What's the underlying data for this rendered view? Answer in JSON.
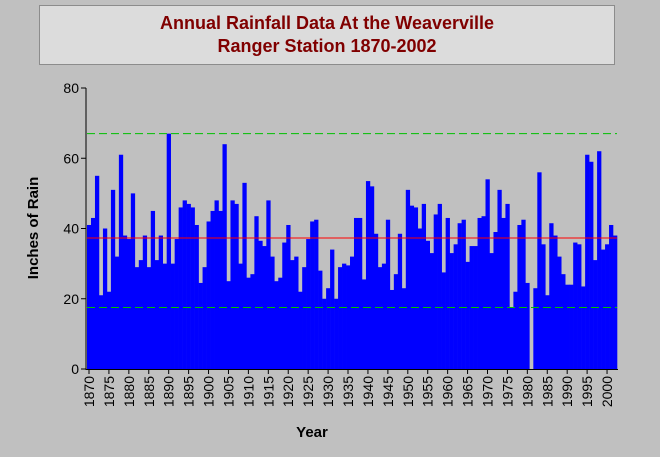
{
  "chart_data": {
    "type": "bar",
    "title": "Annual Rainfall Data At the Weaverville Ranger Station 1870-2002",
    "xlabel": "Year",
    "ylabel": "Inches of Rain",
    "xlim": [
      1870,
      2002
    ],
    "ylim": [
      0,
      80
    ],
    "yticks": [
      0,
      20,
      40,
      60,
      80
    ],
    "xticks": [
      "1870",
      "1875",
      "1880",
      "1885",
      "1890",
      "1895",
      "1900",
      "1905",
      "1910",
      "1915",
      "1920",
      "1925",
      "1930",
      "1935",
      "1940",
      "1945",
      "1950",
      "1955",
      "1960",
      "1965",
      "1970",
      "1975",
      "1980",
      "1985",
      "1990",
      "1995",
      "2000"
    ],
    "reference_lines": [
      {
        "style": "dashed",
        "color": "#00c000",
        "value": 67
      },
      {
        "style": "solid",
        "color": "#ff0000",
        "value": 37.3
      },
      {
        "style": "dashed",
        "color": "#00c000",
        "value": 17.5
      }
    ],
    "colors": {
      "bar": "#0000ff",
      "background": "#c0c0c0",
      "title": "#800000"
    },
    "grid": false,
    "x": [
      1870,
      1871,
      1872,
      1873,
      1874,
      1875,
      1876,
      1877,
      1878,
      1879,
      1880,
      1881,
      1882,
      1883,
      1884,
      1885,
      1886,
      1887,
      1888,
      1889,
      1890,
      1891,
      1892,
      1893,
      1894,
      1895,
      1896,
      1897,
      1898,
      1899,
      1900,
      1901,
      1902,
      1903,
      1904,
      1905,
      1906,
      1907,
      1908,
      1909,
      1910,
      1911,
      1912,
      1913,
      1914,
      1915,
      1916,
      1917,
      1918,
      1919,
      1920,
      1921,
      1922,
      1923,
      1924,
      1925,
      1926,
      1927,
      1928,
      1929,
      1930,
      1931,
      1932,
      1933,
      1934,
      1935,
      1936,
      1937,
      1938,
      1939,
      1940,
      1941,
      1942,
      1943,
      1944,
      1945,
      1946,
      1947,
      1948,
      1949,
      1950,
      1951,
      1952,
      1953,
      1954,
      1955,
      1956,
      1957,
      1958,
      1959,
      1960,
      1961,
      1962,
      1963,
      1964,
      1965,
      1966,
      1967,
      1968,
      1969,
      1970,
      1971,
      1972,
      1973,
      1974,
      1975,
      1976,
      1977,
      1978,
      1979,
      1980,
      1981,
      1982,
      1983,
      1984,
      1985,
      1986,
      1987,
      1988,
      1989,
      1990,
      1991,
      1992,
      1993,
      1994,
      1995,
      1996,
      1997,
      1998,
      1999,
      2000,
      2001,
      2002
    ],
    "values": [
      41,
      43,
      55,
      21,
      40,
      22,
      51,
      32,
      61,
      38,
      37,
      50,
      29,
      31,
      38,
      29,
      45,
      31,
      38,
      30,
      67,
      30,
      37,
      46,
      48,
      47,
      46,
      41,
      24.5,
      29,
      42,
      45,
      48,
      45,
      64,
      25,
      48,
      47,
      30,
      53,
      26,
      27,
      43.5,
      36.5,
      35,
      48,
      32,
      25,
      26,
      36,
      41,
      31,
      32,
      22,
      29,
      37,
      42,
      42.5,
      28,
      20,
      23,
      34,
      20,
      29,
      30,
      29.5,
      32,
      43,
      43,
      25.5,
      53.5,
      52,
      38.5,
      29,
      30,
      42.5,
      22.5,
      27,
      38.5,
      23,
      51,
      46.5,
      46,
      40,
      47,
      36.5,
      33,
      44,
      47,
      27.5,
      43,
      33,
      35.5,
      41.5,
      42.5,
      30.5,
      35,
      35,
      43,
      43.5,
      54,
      33,
      39,
      51,
      43,
      47,
      17.5,
      22,
      41,
      42.5,
      24.5,
      0,
      23,
      56,
      35.5,
      21,
      41.5,
      38,
      32,
      27,
      24,
      24,
      36,
      35.5,
      23.5,
      61,
      59,
      31,
      62,
      34,
      35.5,
      41,
      38
    ]
  }
}
